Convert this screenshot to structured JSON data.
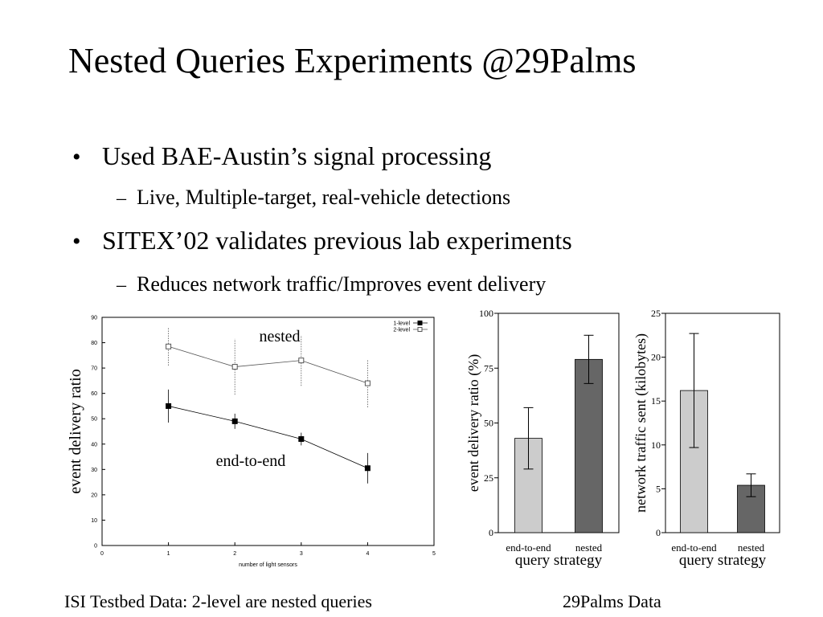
{
  "slide": {
    "title": "Nested Queries Experiments @29Palms",
    "bullets": [
      {
        "text": "Used BAE-Austin’s signal processing",
        "sub": [
          "Live, Multiple-target, real-vehicle detections"
        ]
      },
      {
        "text": "SITEX’02 validates previous lab experiments",
        "sub": [
          "Reduces network traffic/Improves event delivery"
        ]
      }
    ],
    "captions": [
      "ISI Testbed Data: 2-level are  nested queries",
      "29Palms Data"
    ]
  },
  "chart_data": [
    {
      "type": "line",
      "x_label": "number of light sensors",
      "y_label": "event delivery ratio",
      "x": [
        1,
        2,
        3,
        4
      ],
      "xlim": [
        0,
        5
      ],
      "xticks": [
        0,
        1,
        2,
        3,
        4,
        5
      ],
      "ylim": [
        0,
        90
      ],
      "yticks": [
        0,
        10,
        20,
        30,
        40,
        50,
        60,
        70,
        80,
        90
      ],
      "legend": "upper right",
      "annotations": [
        "nested",
        "end-to-end"
      ],
      "series": [
        {
          "name": "1-level",
          "color": "#000000",
          "values": [
            55,
            49,
            42,
            30.5
          ],
          "errors": [
            6.5,
            3,
            2.5,
            6
          ]
        },
        {
          "name": "2-level",
          "color": "#555555",
          "values": [
            78.5,
            70.5,
            73,
            64
          ],
          "errors": [
            7.5,
            11,
            10,
            9.5
          ]
        }
      ]
    },
    {
      "type": "bar",
      "x_label": "query strategy",
      "y_label": "event delivery ratio (%)",
      "categories": [
        "end-to-end",
        "nested"
      ],
      "values": [
        43,
        79
      ],
      "errors": [
        14,
        11
      ],
      "colors": [
        "#cccccc",
        "#666666"
      ],
      "ylim": [
        0,
        100
      ],
      "yticks": [
        0,
        25,
        50,
        75,
        100
      ]
    },
    {
      "type": "bar",
      "x_label": "query strategy",
      "y_label": "network traffic sent (kilobytes)",
      "categories": [
        "end-to-end",
        "nested"
      ],
      "values": [
        16.2,
        5.4
      ],
      "errors": [
        6.5,
        1.3
      ],
      "colors": [
        "#cccccc",
        "#666666"
      ],
      "ylim": [
        0,
        25
      ],
      "yticks": [
        0,
        5,
        10,
        15,
        20,
        25
      ]
    }
  ]
}
